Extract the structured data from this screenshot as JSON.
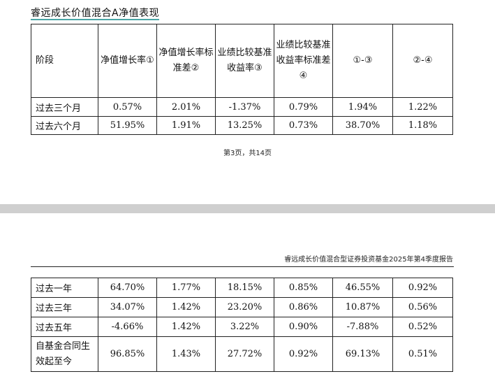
{
  "page1": {
    "section_title": "睿远成长价值混合A净值表现",
    "headers": [
      "阶段",
      "净值增长率①",
      "净值增长率标准差②",
      "业绩比较基准收益率③",
      "业绩比较基准收益率标准差④",
      "①-③",
      "②-④"
    ],
    "rows": [
      {
        "stage": "过去三个月",
        "values": [
          "0.57%",
          "2.01%",
          "-1.37%",
          "0.79%",
          "1.94%",
          "1.22%"
        ]
      },
      {
        "stage": "过去六个月",
        "values": [
          "51.95%",
          "1.91%",
          "13.25%",
          "0.73%",
          "38.70%",
          "1.18%"
        ]
      }
    ],
    "page_number": "第3页，共14页"
  },
  "page2": {
    "running_header": "睿远成长价值混合型证券投资基金2025年第4季度报告",
    "rows": [
      {
        "stage": "过去一年",
        "values": [
          "64.70%",
          "1.77%",
          "18.15%",
          "0.85%",
          "46.55%",
          "0.92%"
        ]
      },
      {
        "stage": "过去三年",
        "values": [
          "34.07%",
          "1.42%",
          "23.20%",
          "0.86%",
          "10.87%",
          "0.56%"
        ]
      },
      {
        "stage": "过去五年",
        "values": [
          "-4.66%",
          "1.42%",
          "3.22%",
          "0.90%",
          "-7.88%",
          "0.52%"
        ]
      },
      {
        "stage": "自基金合同生效起至今",
        "values": [
          "96.85%",
          "1.43%",
          "27.72%",
          "0.92%",
          "69.13%",
          "0.51%"
        ]
      }
    ]
  }
}
